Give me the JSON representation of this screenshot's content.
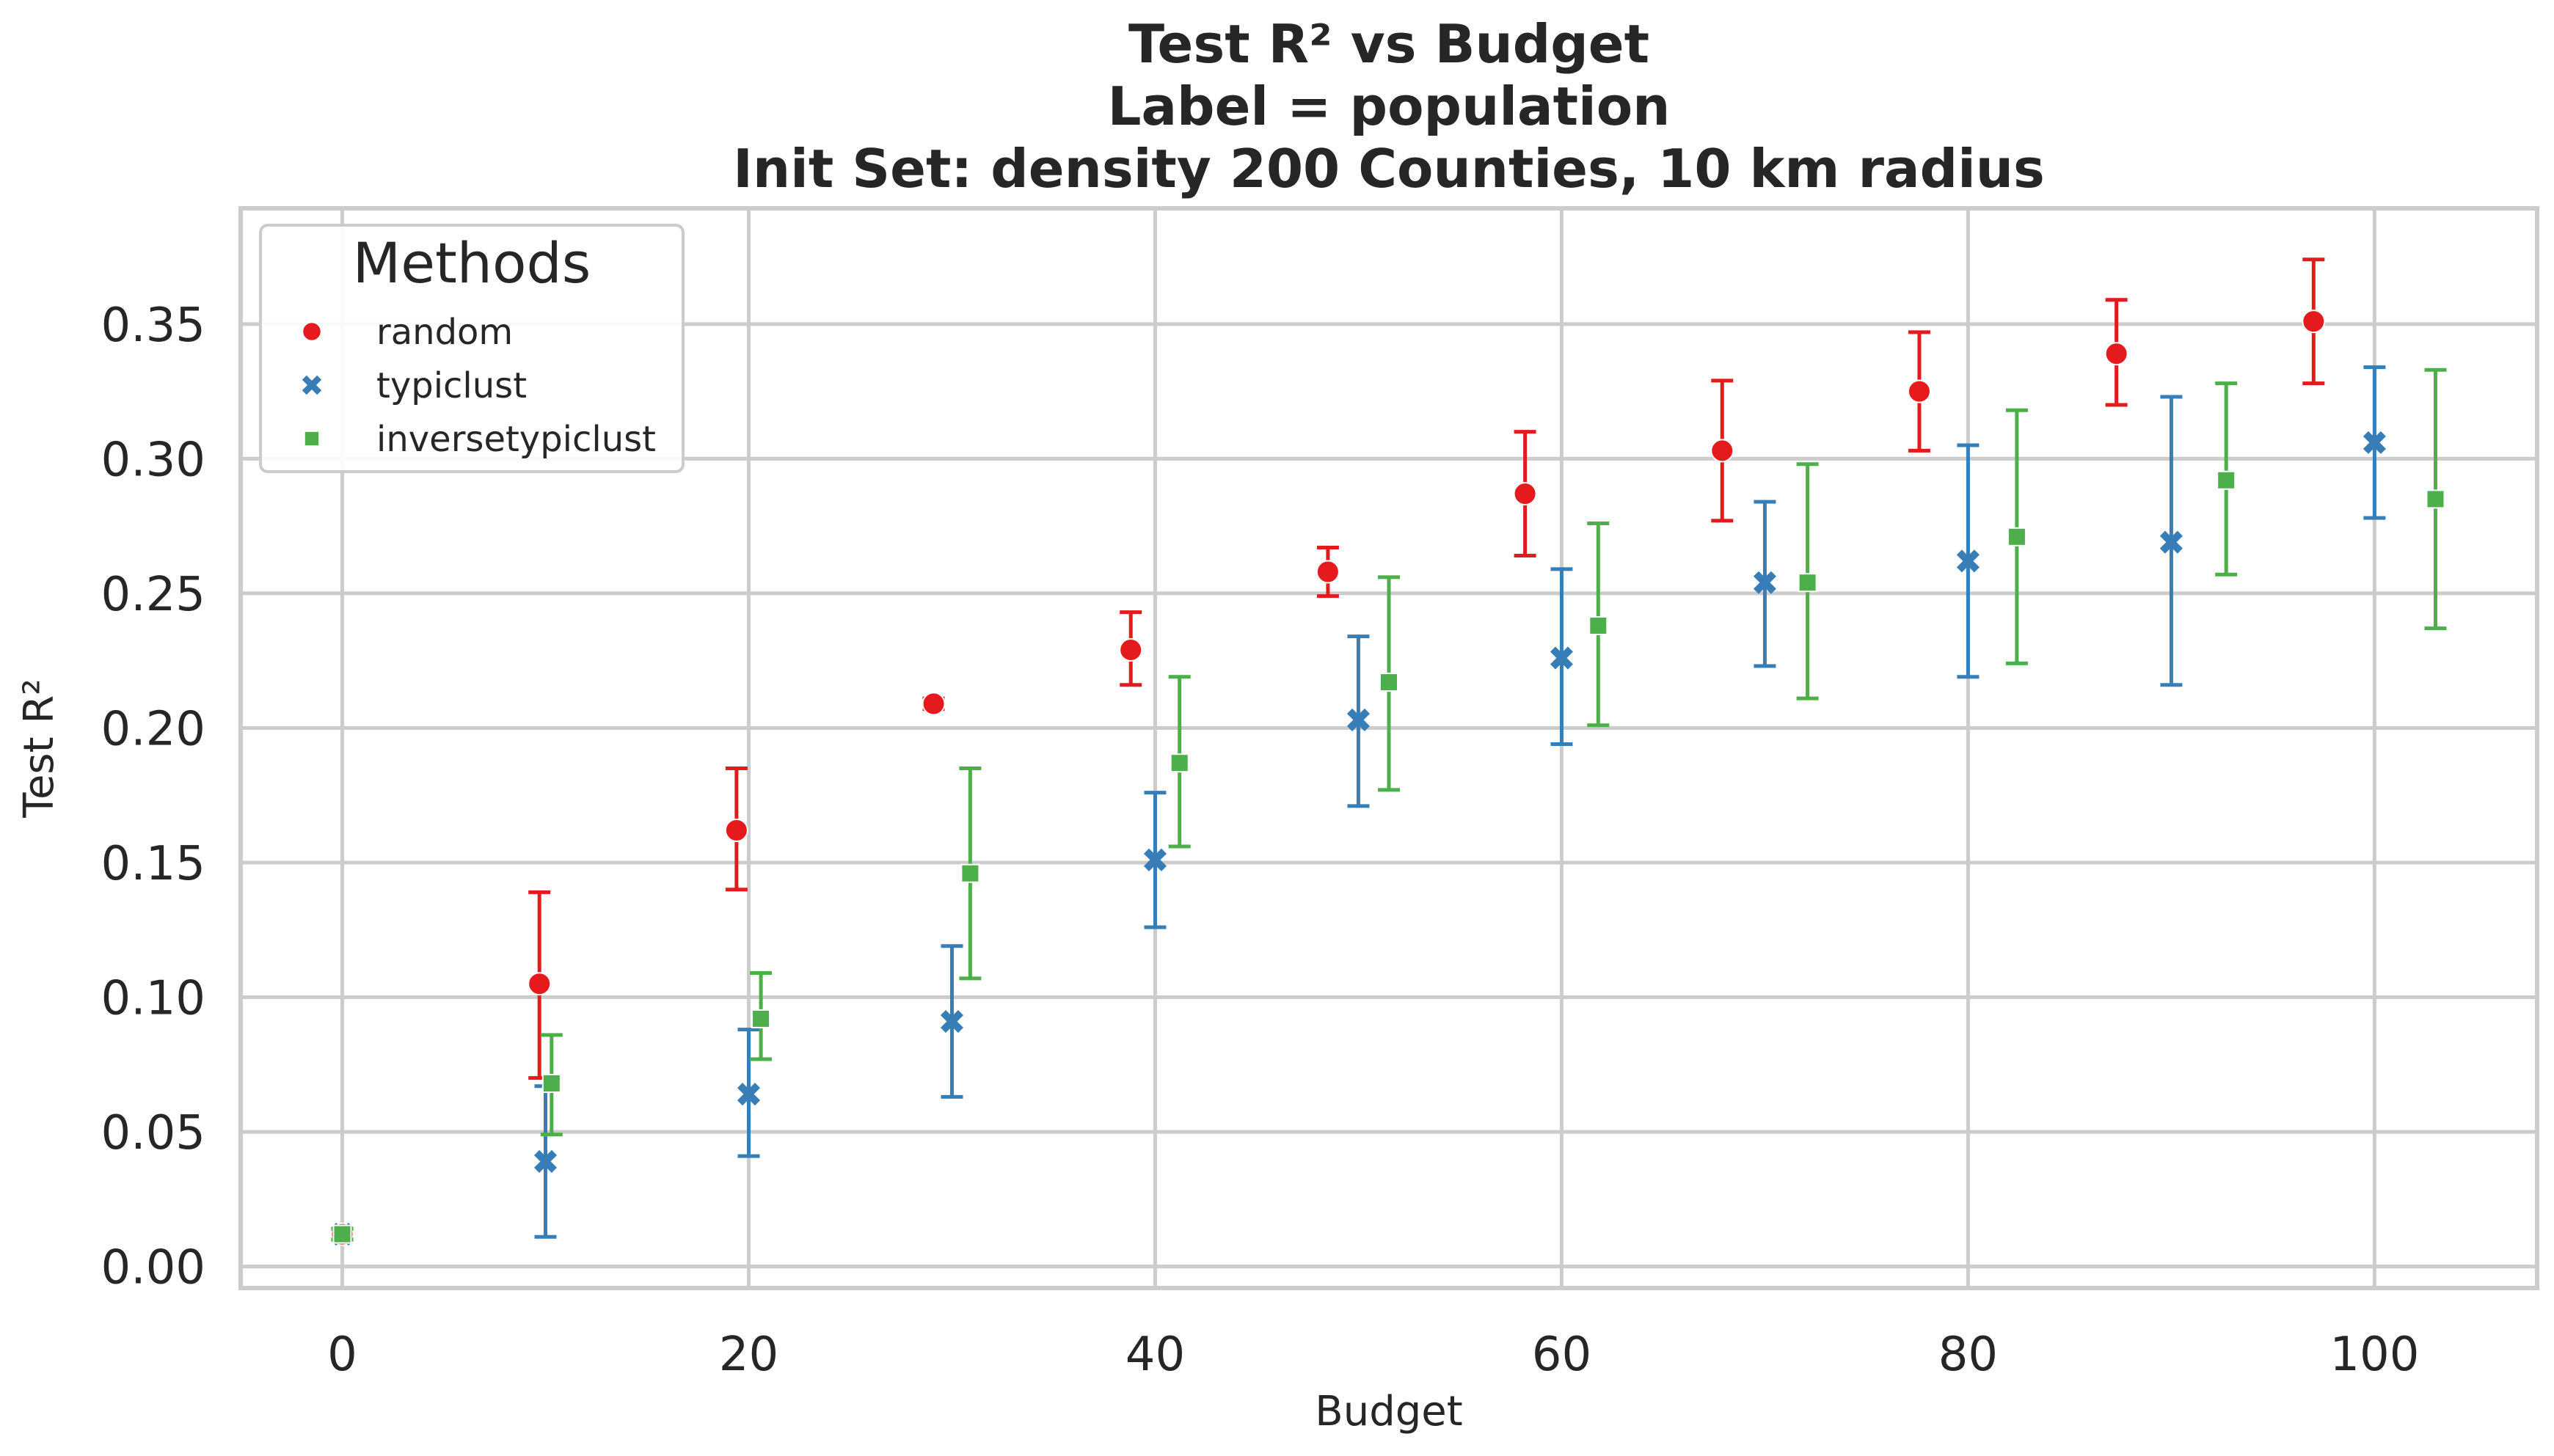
{
  "chart_data": {
    "type": "scatter",
    "title_lines": [
      "Test R² vs Budget",
      "Label = population",
      "Init Set: density 200 Counties, 10 km radius"
    ],
    "xlabel": "Budget",
    "ylabel": "Test R²",
    "xlim": [
      -5,
      108
    ],
    "ylim": [
      -0.008,
      0.393
    ],
    "xticks": [
      0,
      20,
      40,
      60,
      80,
      100
    ],
    "xtick_labels": [
      "0",
      "20",
      "40",
      "60",
      "80",
      "100"
    ],
    "yticks": [
      0.0,
      0.05,
      0.1,
      0.15,
      0.2,
      0.25,
      0.3,
      0.35
    ],
    "ytick_labels": [
      "0.00",
      "0.05",
      "0.10",
      "0.15",
      "0.20",
      "0.25",
      "0.30",
      "0.35"
    ],
    "grid": true,
    "legend": {
      "title": "Methods",
      "placement": "top-left"
    },
    "series": [
      {
        "name": "random",
        "color": "#e41a1c",
        "marker": "circle",
        "points": [
          {
            "x": 0,
            "y": 0.012,
            "lo": 0.01,
            "hi": 0.014
          },
          {
            "x": 9.7,
            "y": 0.105,
            "lo": 0.07,
            "hi": 0.139
          },
          {
            "x": 19.4,
            "y": 0.162,
            "lo": 0.14,
            "hi": 0.185
          },
          {
            "x": 29.1,
            "y": 0.209,
            "lo": 0.207,
            "hi": 0.211
          },
          {
            "x": 38.8,
            "y": 0.229,
            "lo": 0.216,
            "hi": 0.243
          },
          {
            "x": 48.5,
            "y": 0.258,
            "lo": 0.249,
            "hi": 0.267
          },
          {
            "x": 58.2,
            "y": 0.287,
            "lo": 0.264,
            "hi": 0.31
          },
          {
            "x": 67.9,
            "y": 0.303,
            "lo": 0.277,
            "hi": 0.329
          },
          {
            "x": 77.6,
            "y": 0.325,
            "lo": 0.303,
            "hi": 0.347
          },
          {
            "x": 87.3,
            "y": 0.339,
            "lo": 0.32,
            "hi": 0.359
          },
          {
            "x": 97.0,
            "y": 0.351,
            "lo": 0.328,
            "hi": 0.374
          }
        ]
      },
      {
        "name": "typiclust",
        "color": "#377eb8",
        "marker": "x",
        "points": [
          {
            "x": 0,
            "y": 0.012,
            "lo": 0.01,
            "hi": 0.014
          },
          {
            "x": 10,
            "y": 0.039,
            "lo": 0.011,
            "hi": 0.067
          },
          {
            "x": 20,
            "y": 0.064,
            "lo": 0.041,
            "hi": 0.088
          },
          {
            "x": 30,
            "y": 0.091,
            "lo": 0.063,
            "hi": 0.119
          },
          {
            "x": 40,
            "y": 0.151,
            "lo": 0.126,
            "hi": 0.176
          },
          {
            "x": 50,
            "y": 0.203,
            "lo": 0.171,
            "hi": 0.234
          },
          {
            "x": 60,
            "y": 0.226,
            "lo": 0.194,
            "hi": 0.259
          },
          {
            "x": 70,
            "y": 0.254,
            "lo": 0.223,
            "hi": 0.284
          },
          {
            "x": 80,
            "y": 0.262,
            "lo": 0.219,
            "hi": 0.305
          },
          {
            "x": 90,
            "y": 0.269,
            "lo": 0.216,
            "hi": 0.323
          },
          {
            "x": 100,
            "y": 0.306,
            "lo": 0.278,
            "hi": 0.334
          }
        ]
      },
      {
        "name": "inversetypiclust",
        "color": "#4daf4a",
        "marker": "square",
        "points": [
          {
            "x": 0,
            "y": 0.012,
            "lo": 0.01,
            "hi": 0.014
          },
          {
            "x": 10.3,
            "y": 0.068,
            "lo": 0.049,
            "hi": 0.086
          },
          {
            "x": 20.6,
            "y": 0.092,
            "lo": 0.077,
            "hi": 0.109
          },
          {
            "x": 30.9,
            "y": 0.146,
            "lo": 0.107,
            "hi": 0.185
          },
          {
            "x": 41.2,
            "y": 0.187,
            "lo": 0.156,
            "hi": 0.219
          },
          {
            "x": 51.5,
            "y": 0.217,
            "lo": 0.177,
            "hi": 0.256
          },
          {
            "x": 61.8,
            "y": 0.238,
            "lo": 0.201,
            "hi": 0.276
          },
          {
            "x": 72.1,
            "y": 0.254,
            "lo": 0.211,
            "hi": 0.298
          },
          {
            "x": 82.4,
            "y": 0.271,
            "lo": 0.224,
            "hi": 0.318
          },
          {
            "x": 92.7,
            "y": 0.292,
            "lo": 0.257,
            "hi": 0.328
          },
          {
            "x": 103.0,
            "y": 0.285,
            "lo": 0.237,
            "hi": 0.333
          }
        ]
      }
    ]
  }
}
